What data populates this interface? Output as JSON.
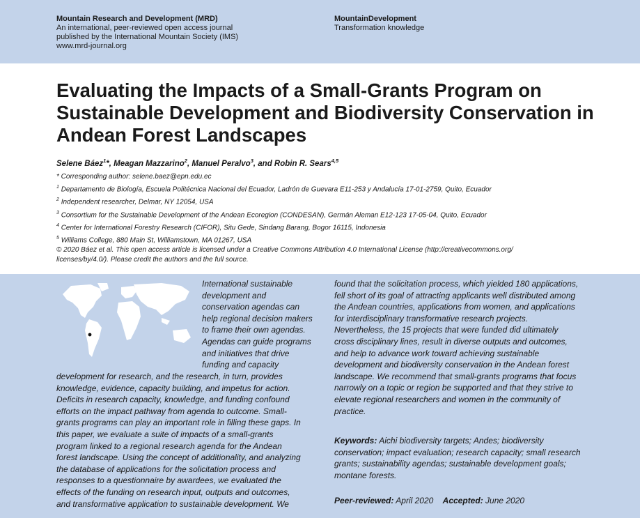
{
  "header": {
    "left": {
      "title": "Mountain Research and Development (MRD)",
      "line1": "An international, peer-reviewed open access journal",
      "line2": "published by the International Mountain Society (IMS)",
      "url": "www.mrd-journal.org"
    },
    "right": {
      "title": "MountainDevelopment",
      "subtitle": "Transformation knowledge"
    }
  },
  "article": {
    "title": "Evaluating the Impacts of a Small-Grants Program on Sustainable Development and Biodiversity Conservation in Andean Forest Landscapes",
    "authors": [
      {
        "name": "Selene Báez",
        "sup": "1",
        "mark": "*"
      },
      {
        "name": "Meagan Mazzarino",
        "sup": "2"
      },
      {
        "name": "Manuel Peralvo",
        "sup": "3"
      },
      {
        "name": "Robin R. Sears",
        "sup": "4,5"
      }
    ],
    "author_sep": ", ",
    "author_and": ", and ",
    "corresponding": "* Corresponding author: selene.baez@epn.edu.ec",
    "affiliations": [
      {
        "sup": "1",
        "text": "Departamento de Biología, Escuela Politécnica Nacional del Ecuador, Ladrón de Guevara E11-253 y Andalucía 17-01-2759, Quito, Ecuador"
      },
      {
        "sup": "2",
        "text": "Independent researcher, Delmar, NY 12054, USA"
      },
      {
        "sup": "3",
        "text": "Consortium for the Sustainable Development of the Andean Ecoregion (CONDESAN), Germán Aleman E12-123 17-05-04, Quito, Ecuador"
      },
      {
        "sup": "4",
        "text": "Center for International Forestry Research (CIFOR), Situ Gede, Sindang Barang, Bogor 16115, Indonesia"
      },
      {
        "sup": "5",
        "text": "Williams College, 880 Main St, Williamstown, MA 01267, USA"
      }
    ],
    "copyright": [
      "© 2020 Báez et al. This open access article is licensed under a Creative Commons Attribution 4.0 International License (http://creativecommons.org/",
      "licenses/by/4.0/). Please credit the authors and the full source."
    ]
  },
  "abstract": {
    "beside_map": [
      "International sustainable",
      "development and",
      "conservation agendas can",
      "help regional decision makers",
      "to frame their own agendas.",
      "Agendas can guide programs",
      "and initiatives that drive",
      "funding and capacity"
    ],
    "below_map": [
      "development for research, and the research, in turn, provides",
      "knowledge, evidence, capacity building, and impetus for action.",
      "Deficits in research capacity, knowledge, and funding confound",
      "efforts on the impact pathway from agenda to outcome. Small-",
      "grants programs can play an important role in filling these gaps. In",
      "this paper, we evaluate a suite of impacts of a small-grants",
      "program linked to a regional research agenda for the Andean",
      "forest landscape. Using the concept of additionality, and analyzing",
      "the database of applications for the solicitation process and",
      "responses to a questionnaire by awardees, we evaluated the",
      "effects of the funding on research input, outputs and outcomes,",
      "and transformative application to sustainable development. We"
    ],
    "right_column": [
      "found that the solicitation process, which yielded 180 applications,",
      "fell short of its goal of attracting applicants well distributed among",
      "the Andean countries, applications from women, and applications",
      "for interdisciplinary transformative research projects.",
      "Nevertheless, the 15 projects that were funded did ultimately",
      "cross disciplinary lines, result in diverse outputs and outcomes,",
      "and help to advance work toward achieving sustainable",
      "development and biodiversity conservation in the Andean forest",
      "landscape. We recommend that small-grants programs that focus",
      "narrowly on a topic or region be supported and that they strive to",
      "elevate regional researchers and women in the community of",
      "practice."
    ]
  },
  "keywords": {
    "label": "Keywords:",
    "lines": [
      " Aichi biodiversity targets; Andes; biodiversity",
      "conservation; impact evaluation; research capacity; small research",
      "grants; sustainability agendas; sustainable development goals;",
      "montane forests."
    ]
  },
  "review": {
    "peer_label": "Peer-reviewed:",
    "peer_date": " April 2020",
    "accepted_label": "Accepted:",
    "accepted_date": " June 2020"
  },
  "colors": {
    "band": "#c3d3ea",
    "map_land": "#ffffff",
    "marker": "#111111"
  },
  "icons": {
    "map": "world-map-icon",
    "marker": "location-dot-icon"
  }
}
